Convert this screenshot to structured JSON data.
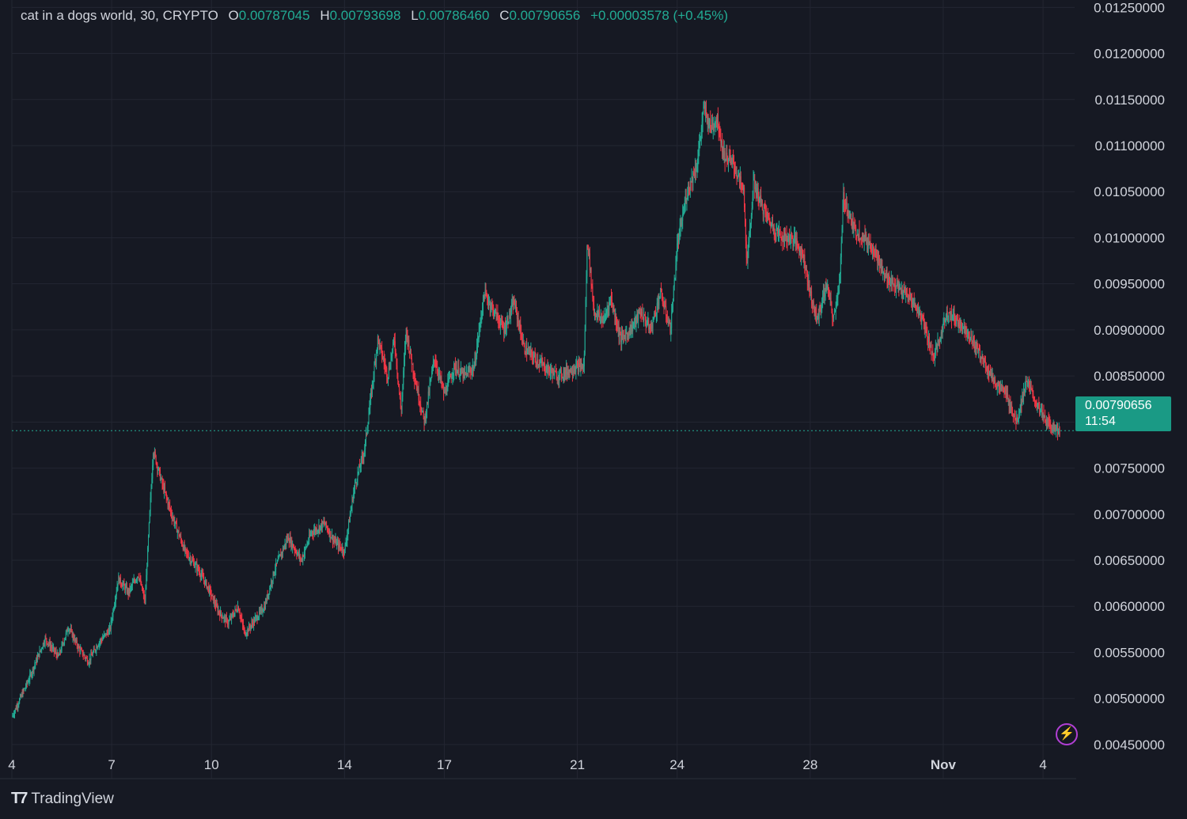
{
  "header": {
    "symbol": "cat in a dogs world",
    "interval": "30",
    "exchange": "CRYPTO",
    "open_label": "O",
    "open": "0.00787045",
    "high_label": "H",
    "high": "0.00793698",
    "low_label": "L",
    "low": "0.00786460",
    "close_label": "C",
    "close": "0.00790656",
    "change": "+0.00003578",
    "change_pct": "(+0.45%)"
  },
  "last_price": {
    "value": "0.00790656",
    "countdown": "11:54"
  },
  "brand": {
    "name": "TradingView"
  },
  "colors": {
    "up": "#22ab94",
    "down": "#f23645",
    "background": "#161923",
    "grid": "#232632",
    "axis_text": "#d1d4dc",
    "price_tag": "#1a9a85"
  },
  "chart_data": {
    "type": "candlestick",
    "interval_minutes": 30,
    "y_ticks": [
      "0.00450000",
      "0.00500000",
      "0.00550000",
      "0.00600000",
      "0.00650000",
      "0.00700000",
      "0.00750000",
      "0.00800000",
      "0.00850000",
      "0.00900000",
      "0.00950000",
      "0.01000000",
      "0.01050000",
      "0.01100000",
      "0.01150000",
      "0.01200000",
      "0.01250000"
    ],
    "ylim": [
      0.00413,
      0.01258
    ],
    "x_ticks": [
      {
        "label": "4",
        "day": 4
      },
      {
        "label": "7",
        "day": 7
      },
      {
        "label": "10",
        "day": 10
      },
      {
        "label": "14",
        "day": 14
      },
      {
        "label": "17",
        "day": 17
      },
      {
        "label": "21",
        "day": 21
      },
      {
        "label": "24",
        "day": 24
      },
      {
        "label": "28",
        "day": 28
      },
      {
        "label": "Nov",
        "day": 32
      },
      {
        "label": "4",
        "day": 35
      }
    ],
    "xlim_days": [
      4.0,
      35.95
    ],
    "close_series": [
      [
        4.0,
        0.0048
      ],
      [
        4.5,
        0.0052
      ],
      [
        5.0,
        0.00565
      ],
      [
        5.4,
        0.00545
      ],
      [
        5.7,
        0.00578
      ],
      [
        6.0,
        0.00555
      ],
      [
        6.3,
        0.0054
      ],
      [
        6.6,
        0.0056
      ],
      [
        6.95,
        0.00575
      ],
      [
        7.2,
        0.0063
      ],
      [
        7.5,
        0.00615
      ],
      [
        7.8,
        0.00635
      ],
      [
        8.0,
        0.00605
      ],
      [
        8.25,
        0.0077
      ],
      [
        8.5,
        0.00735
      ],
      [
        8.8,
        0.007
      ],
      [
        9.2,
        0.0066
      ],
      [
        9.6,
        0.0064
      ],
      [
        9.9,
        0.0062
      ],
      [
        10.2,
        0.00595
      ],
      [
        10.5,
        0.00582
      ],
      [
        10.8,
        0.006
      ],
      [
        11.0,
        0.0057
      ],
      [
        11.3,
        0.00585
      ],
      [
        11.6,
        0.006
      ],
      [
        11.9,
        0.0064
      ],
      [
        12.3,
        0.00675
      ],
      [
        12.7,
        0.0065
      ],
      [
        13.0,
        0.0068
      ],
      [
        13.4,
        0.0069
      ],
      [
        13.7,
        0.0067
      ],
      [
        14.0,
        0.0066
      ],
      [
        14.3,
        0.0073
      ],
      [
        14.6,
        0.0077
      ],
      [
        14.8,
        0.0083
      ],
      [
        15.0,
        0.0089
      ],
      [
        15.3,
        0.0085
      ],
      [
        15.5,
        0.0089
      ],
      [
        15.7,
        0.0081
      ],
      [
        15.85,
        0.009
      ],
      [
        16.1,
        0.0085
      ],
      [
        16.4,
        0.008
      ],
      [
        16.7,
        0.0087
      ],
      [
        17.0,
        0.0083
      ],
      [
        17.3,
        0.0086
      ],
      [
        17.6,
        0.0085
      ],
      [
        17.9,
        0.0086
      ],
      [
        18.2,
        0.0094
      ],
      [
        18.5,
        0.0092
      ],
      [
        18.8,
        0.009
      ],
      [
        19.1,
        0.0093
      ],
      [
        19.4,
        0.0088
      ],
      [
        19.7,
        0.0087
      ],
      [
        20.0,
        0.0086
      ],
      [
        20.4,
        0.0085
      ],
      [
        20.7,
        0.00855
      ],
      [
        21.0,
        0.0086
      ],
      [
        21.2,
        0.0086
      ],
      [
        21.3,
        0.01
      ],
      [
        21.5,
        0.0092
      ],
      [
        21.8,
        0.0091
      ],
      [
        22.0,
        0.00935
      ],
      [
        22.3,
        0.0089
      ],
      [
        22.6,
        0.009
      ],
      [
        22.9,
        0.0092
      ],
      [
        23.2,
        0.009
      ],
      [
        23.5,
        0.0094
      ],
      [
        23.8,
        0.009
      ],
      [
        24.0,
        0.0099
      ],
      [
        24.3,
        0.0105
      ],
      [
        24.6,
        0.0108
      ],
      [
        24.8,
        0.0114
      ],
      [
        25.0,
        0.0112
      ],
      [
        25.2,
        0.0113
      ],
      [
        25.4,
        0.0109
      ],
      [
        25.7,
        0.0108
      ],
      [
        26.0,
        0.0105
      ],
      [
        26.1,
        0.0097
      ],
      [
        26.3,
        0.0106
      ],
      [
        26.6,
        0.0103
      ],
      [
        26.9,
        0.0101
      ],
      [
        27.2,
        0.01
      ],
      [
        27.5,
        0.01
      ],
      [
        27.8,
        0.0098
      ],
      [
        28.0,
        0.0094
      ],
      [
        28.2,
        0.0091
      ],
      [
        28.5,
        0.0095
      ],
      [
        28.7,
        0.0091
      ],
      [
        28.9,
        0.0096
      ],
      [
        29.0,
        0.01045
      ],
      [
        29.3,
        0.0101
      ],
      [
        29.6,
        0.01
      ],
      [
        29.9,
        0.0099
      ],
      [
        30.2,
        0.0096
      ],
      [
        30.5,
        0.0095
      ],
      [
        30.8,
        0.0094
      ],
      [
        31.1,
        0.0093
      ],
      [
        31.4,
        0.0091
      ],
      [
        31.7,
        0.0087
      ],
      [
        31.9,
        0.0089
      ],
      [
        32.1,
        0.0092
      ],
      [
        32.4,
        0.0091
      ],
      [
        32.7,
        0.009
      ],
      [
        33.0,
        0.0088
      ],
      [
        33.3,
        0.0086
      ],
      [
        33.6,
        0.0084
      ],
      [
        33.9,
        0.0083
      ],
      [
        34.2,
        0.008
      ],
      [
        34.5,
        0.00845
      ],
      [
        34.8,
        0.0082
      ],
      [
        35.1,
        0.008
      ],
      [
        35.5,
        0.00790656
      ]
    ]
  }
}
